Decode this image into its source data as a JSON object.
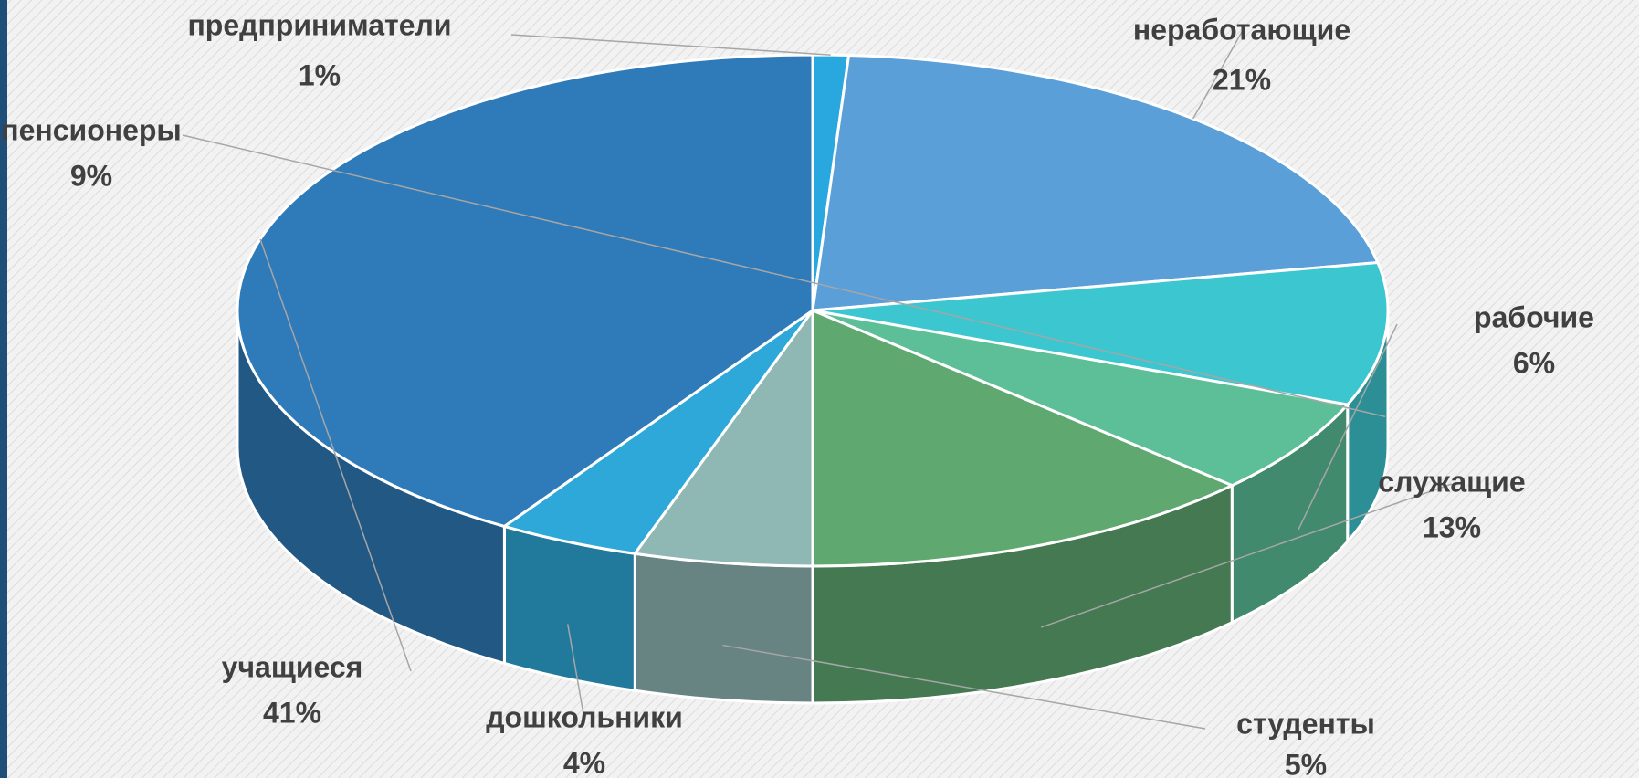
{
  "chart_data": {
    "type": "pie3d",
    "categories": [
      "предприниматели",
      "неработающие",
      "пенсионеры",
      "рабочие",
      "служащие",
      "студенты",
      "дошкольники",
      "учащиеся"
    ],
    "values": [
      1,
      21,
      9,
      6,
      13,
      5,
      4,
      41
    ],
    "value_labels": [
      "1%",
      "21%",
      "9%",
      "6%",
      "13%",
      "5%",
      "4%",
      "41%"
    ],
    "colors": [
      "#29a8e0",
      "#5a9fd8",
      "#3cc6cf",
      "#5cbf98",
      "#5fa870",
      "#8fb8b4",
      "#2ea8d8",
      "#2f7ab8"
    ]
  }
}
